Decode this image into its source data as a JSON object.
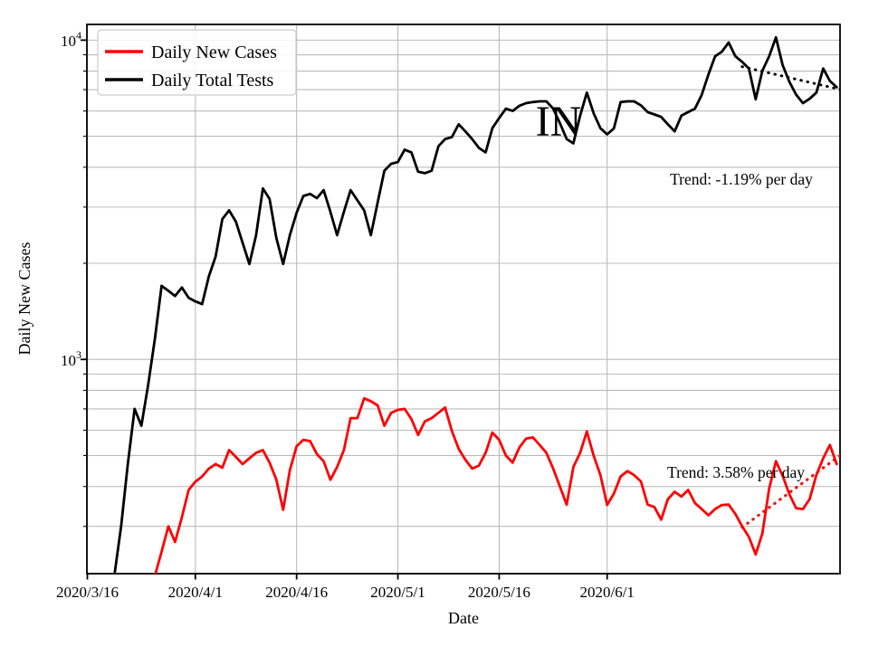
{
  "figure": {
    "background": "#ffffff",
    "ylabel": "Daily New Cases",
    "xlabel": "Date"
  },
  "annotations": {
    "state_label": "IN"
  },
  "chart_data": {
    "type": "line",
    "title": "",
    "xlabel": "Date",
    "ylabel": "Daily New Cases",
    "yscale": "log",
    "ylim": [
      214,
      11200
    ],
    "xlim_days": [
      0,
      111.5
    ],
    "grid": true,
    "grid_color": "#bbbbbb",
    "legend_position": "upper-left",
    "x_ticks": [
      {
        "day": 0,
        "label": "2020/3/16"
      },
      {
        "day": 16,
        "label": "2020/4/1"
      },
      {
        "day": 31,
        "label": "2020/4/16"
      },
      {
        "day": 46,
        "label": "2020/5/1"
      },
      {
        "day": 61,
        "label": "2020/5/16"
      },
      {
        "day": 77,
        "label": "2020/6/1"
      }
    ],
    "y_ticks": [
      {
        "value": 1000,
        "base": "10",
        "sup": "3"
      },
      {
        "value": 10000,
        "base": "10",
        "sup": "4"
      }
    ],
    "series": [
      {
        "name": "Daily New Cases",
        "color": "#ff0000",
        "cadence": "daily",
        "start_date": "2020/3/26",
        "start_day": 10,
        "values": [
          210,
          250,
          300,
          268,
          320,
          390,
          414,
          430,
          455,
          470,
          458,
          520,
          495,
          470,
          490,
          510,
          520,
          475,
          420,
          338,
          450,
          535,
          560,
          555,
          505,
          480,
          420,
          460,
          520,
          655,
          655,
          755,
          740,
          718,
          620,
          680,
          695,
          700,
          650,
          580,
          640,
          655,
          680,
          707,
          597,
          525,
          485,
          455,
          465,
          510,
          590,
          560,
          500,
          475,
          530,
          565,
          570,
          540,
          510,
          455,
          400,
          351,
          460,
          510,
          595,
          500,
          434,
          350,
          380,
          430,
          447,
          434,
          415,
          351,
          345,
          315,
          365,
          385,
          372,
          390,
          355,
          340,
          325,
          340,
          350,
          351,
          328,
          300,
          278,
          245,
          285,
          394,
          480,
          432,
          378,
          342,
          340,
          365,
          435,
          490,
          540,
          470
        ]
      },
      {
        "name": "Daily Total Tests",
        "color": "#000000",
        "cadence": "daily",
        "start_date": "2020/3/20",
        "start_day": 4,
        "values": [
          210,
          300,
          470,
          700,
          620,
          830,
          1160,
          1700,
          1640,
          1580,
          1680,
          1560,
          1520,
          1490,
          1820,
          2100,
          2750,
          2930,
          2700,
          2320,
          1990,
          2450,
          3430,
          3180,
          2400,
          1990,
          2450,
          2880,
          3250,
          3300,
          3200,
          3390,
          2900,
          2450,
          2900,
          3390,
          3150,
          2930,
          2450,
          3100,
          3900,
          4100,
          4150,
          4540,
          4450,
          3870,
          3830,
          3900,
          4650,
          4900,
          4970,
          5450,
          5180,
          4900,
          4600,
          4450,
          5300,
          5700,
          6100,
          6000,
          6230,
          6350,
          6400,
          6430,
          6430,
          6100,
          5500,
          4900,
          4750,
          5800,
          6850,
          5900,
          5300,
          5070,
          5290,
          6400,
          6430,
          6430,
          6250,
          5950,
          5850,
          5750,
          5450,
          5180,
          5800,
          5950,
          6100,
          6730,
          7800,
          8900,
          9200,
          9830,
          8900,
          8550,
          8150,
          6530,
          8020,
          8900,
          10200,
          8350,
          7400,
          6750,
          6350,
          6550,
          6850,
          8150,
          7450,
          7120
        ]
      }
    ],
    "trend_lines": [
      {
        "for": "Daily Total Tests",
        "label": "Trend: -1.19% per day",
        "style": "dotted",
        "color": "#000000",
        "start": {
          "day": 97,
          "value": 8260
        },
        "end": {
          "day": 111.5,
          "value": 7010
        }
      },
      {
        "for": "Daily New Cases",
        "label": "Trend: 3.58% per day",
        "style": "dotted",
        "color": "#ff0000",
        "start": {
          "day": 97,
          "value": 298
        },
        "end": {
          "day": 111.5,
          "value": 500
        }
      }
    ]
  }
}
